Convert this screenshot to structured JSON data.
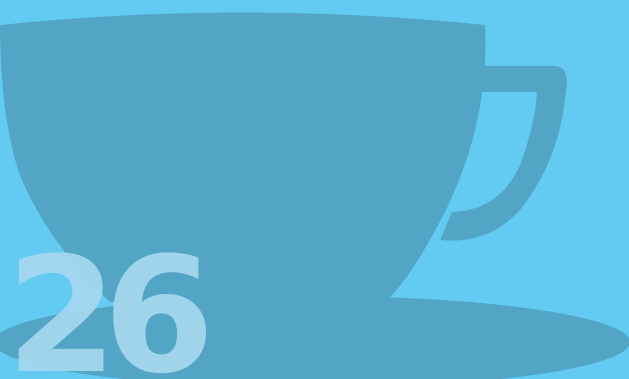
{
  "number": "26",
  "colors": {
    "background": "#63cbf2",
    "cup": "#53a5c6",
    "number": "#a6d8ef"
  },
  "icons": {
    "cup": "coffee-cup-icon",
    "saucer": "saucer-icon"
  }
}
